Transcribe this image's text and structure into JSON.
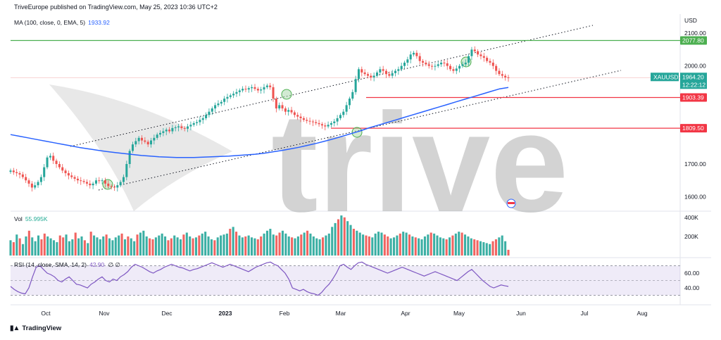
{
  "header": {
    "publisher": "TriveEurope published on TradingView.com, May 25, 2023 10:36 UTC+2"
  },
  "legends": {
    "ma": {
      "label": "MA (100, close, 0, EMA, 5)",
      "value": "1933.92"
    },
    "vol": {
      "label": "Vol",
      "value": "55.995K"
    },
    "rsi": {
      "label": "RSI (14, close, SMA, 14, 2)",
      "value": "42.90",
      "extra": "∅  ∅"
    }
  },
  "footer": {
    "brand": "TradingView"
  },
  "watermark": {
    "text": "trive"
  },
  "colors": {
    "up": "#26a69a",
    "down": "#ef5350",
    "ma": "#2962ff",
    "rsi": "#7e57c2",
    "green_line": "#4caf50",
    "red_line": "#f23645"
  },
  "chart_data": [
    {
      "type": "candlestick",
      "symbol": "XAUUSD",
      "currency": "USD",
      "last_price": "1964.20",
      "countdown": "12:22:12",
      "ylim": [
        1560,
        2150
      ],
      "y_ticks": [
        "2100.00",
        "2000.00",
        "1700.00",
        "1600.00"
      ],
      "x_ticks": [
        "Oct",
        "Nov",
        "Dec",
        "2023",
        "Feb",
        "Mar",
        "Apr",
        "May",
        "Jun",
        "Jul",
        "Aug"
      ],
      "levels": [
        {
          "label": "2077.80",
          "value": 2077.8,
          "color": "green"
        },
        {
          "label": "1903.39",
          "value": 1903.39,
          "color": "red"
        },
        {
          "label": "1809.50",
          "value": 1809.5,
          "color": "red"
        }
      ],
      "close_series": [
        1680,
        1675,
        1672,
        1668,
        1660,
        1650,
        1640,
        1628,
        1635,
        1645,
        1660,
        1690,
        1720,
        1725,
        1710,
        1700,
        1690,
        1680,
        1672,
        1665,
        1660,
        1655,
        1650,
        1648,
        1645,
        1640,
        1635,
        1640,
        1650,
        1648,
        1650,
        1640,
        1632,
        1630,
        1628,
        1635,
        1645,
        1660,
        1700,
        1740,
        1760,
        1770,
        1780,
        1772,
        1768,
        1760,
        1772,
        1780,
        1790,
        1795,
        1800,
        1805,
        1800,
        1810,
        1812,
        1815,
        1810,
        1808,
        1815,
        1820,
        1825,
        1828,
        1835,
        1840,
        1850,
        1860,
        1870,
        1880,
        1885,
        1890,
        1900,
        1905,
        1910,
        1915,
        1920,
        1925,
        1930,
        1928,
        1932,
        1935,
        1930,
        1925,
        1928,
        1935,
        1940,
        1935,
        1900,
        1870,
        1880,
        1870,
        1860,
        1865,
        1858,
        1850,
        1845,
        1840,
        1835,
        1832,
        1830,
        1828,
        1825,
        1822,
        1818,
        1815,
        1820,
        1825,
        1830,
        1840,
        1850,
        1860,
        1880,
        1900,
        1920,
        1960,
        1990,
        1980,
        1975,
        1970,
        1965,
        1970,
        1980,
        1990,
        1985,
        1975,
        1970,
        1978,
        1985,
        1990,
        2000,
        2010,
        2020,
        2035,
        2040,
        2030,
        2015,
        2010,
        2005,
        2000,
        1998,
        2000,
        2005,
        2010,
        2008,
        2000,
        1990,
        1985,
        1992,
        2000,
        2005,
        2010,
        2030,
        2050,
        2045,
        2035,
        2030,
        2025,
        2015,
        2010,
        2000,
        1985,
        1975,
        1970,
        1965,
        1964
      ],
      "ma_ema_100": [
        1790,
        1785,
        1780,
        1775,
        1770,
        1765,
        1760,
        1755,
        1750,
        1746,
        1742,
        1738,
        1735,
        1732,
        1729,
        1726,
        1724,
        1722,
        1721,
        1720,
        1720,
        1720,
        1721,
        1722,
        1723,
        1724,
        1726,
        1728,
        1730,
        1733,
        1737,
        1741,
        1746,
        1751,
        1757,
        1763,
        1770,
        1777,
        1785,
        1793,
        1801,
        1810,
        1818,
        1826,
        1834,
        1842,
        1850,
        1858,
        1866,
        1874,
        1882,
        1890,
        1898,
        1906,
        1914,
        1922,
        1930,
        1934
      ],
      "volume": [
        160,
        140,
        220,
        180,
        120,
        200,
        260,
        190,
        150,
        210,
        170,
        230,
        200,
        180,
        160,
        140,
        210,
        190,
        220,
        150,
        170,
        240,
        180,
        200,
        160,
        130,
        250,
        210,
        190,
        170,
        200,
        220,
        180,
        160,
        190,
        210,
        230,
        170,
        200,
        180,
        150,
        220,
        240,
        260,
        200,
        180,
        170,
        190,
        210,
        230,
        200,
        160,
        180,
        210,
        190,
        170,
        220,
        240,
        200,
        180,
        190,
        210,
        230,
        250,
        200,
        170,
        160,
        190,
        210,
        220,
        230,
        280,
        300,
        250,
        210,
        190,
        200,
        210,
        190,
        180,
        170,
        200,
        230,
        260,
        280,
        220,
        210,
        240,
        260,
        230,
        200,
        190,
        180,
        200,
        220,
        240,
        260,
        230,
        200,
        180,
        170,
        190,
        210,
        230,
        300,
        340,
        380,
        420,
        400,
        360,
        320,
        280,
        260,
        240,
        220,
        210,
        200,
        190,
        230,
        250,
        240,
        220,
        200,
        180,
        190,
        210,
        230,
        250,
        240,
        220,
        200,
        190,
        180,
        170,
        200,
        220,
        240,
        230,
        210,
        190,
        180,
        170,
        190,
        210,
        230,
        250,
        240,
        220,
        200,
        180,
        170,
        160,
        150,
        140,
        130,
        120,
        150,
        170,
        190,
        210,
        150,
        60
      ],
      "vol_ticks": [
        "400K",
        "200K"
      ],
      "rsi": [
        42,
        38,
        35,
        33,
        32,
        40,
        55,
        68,
        70,
        65,
        60,
        58,
        55,
        50,
        48,
        52,
        55,
        50,
        45,
        44,
        42,
        40,
        45,
        48,
        52,
        55,
        50,
        48,
        52,
        50,
        55,
        58,
        62,
        68,
        72,
        70,
        68,
        65,
        62,
        60,
        63,
        65,
        68,
        70,
        72,
        70,
        68,
        67,
        65,
        63,
        65,
        66,
        68,
        70,
        72,
        74,
        72,
        70,
        68,
        70,
        72,
        70,
        68,
        66,
        64,
        62,
        65,
        68,
        70,
        72,
        74,
        75,
        72,
        70,
        65,
        60,
        52,
        40,
        38,
        36,
        38,
        35,
        33,
        32,
        30,
        34,
        40,
        45,
        52,
        60,
        70,
        72,
        68,
        65,
        70,
        74,
        75,
        72,
        70,
        68,
        66,
        64,
        62,
        60,
        62,
        64,
        66,
        68,
        66,
        64,
        62,
        60,
        58,
        56,
        58,
        60,
        62,
        60,
        58,
        56,
        54,
        52,
        50,
        54,
        58,
        62,
        65,
        60,
        55,
        50,
        46,
        42,
        40,
        42,
        44,
        43,
        42
      ],
      "rsi_ticks": [
        "60.00",
        "40.00"
      ],
      "rsi_band": [
        30,
        70
      ]
    }
  ]
}
